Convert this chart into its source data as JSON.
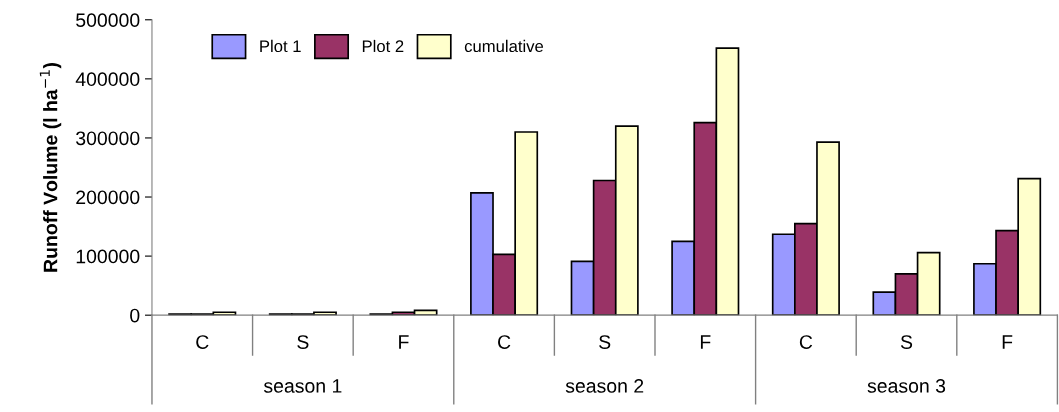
{
  "chart_data": {
    "type": "bar",
    "ylabel": "Runoff Volume (l ha$^{−1}$)",
    "categories": [
      "C",
      "S",
      "F",
      "C",
      "S",
      "F",
      "C",
      "S",
      "F"
    ],
    "series": [
      {
        "name": "Plot 1",
        "color": "#9999ff",
        "values": [
          2000,
          2000,
          2000,
          207000,
          91000,
          125000,
          137000,
          39000,
          87000
        ]
      },
      {
        "name": "Plot 2",
        "color": "#993366",
        "values": [
          2000,
          2000,
          5000,
          103000,
          228000,
          326000,
          155000,
          70000,
          143000
        ]
      },
      {
        "name": "cumulative",
        "color": "#ffffcc",
        "values": [
          5000,
          5000,
          8000,
          310000,
          320000,
          452000,
          293000,
          106000,
          231000
        ]
      }
    ],
    "annotations": [
      "season 1",
      "season 2",
      "season 3"
    ],
    "ylim": [
      0,
      500000
    ],
    "yticks": [
      0,
      100000,
      200000,
      300000,
      400000,
      500000
    ],
    "grid": false,
    "legend": "top left"
  }
}
